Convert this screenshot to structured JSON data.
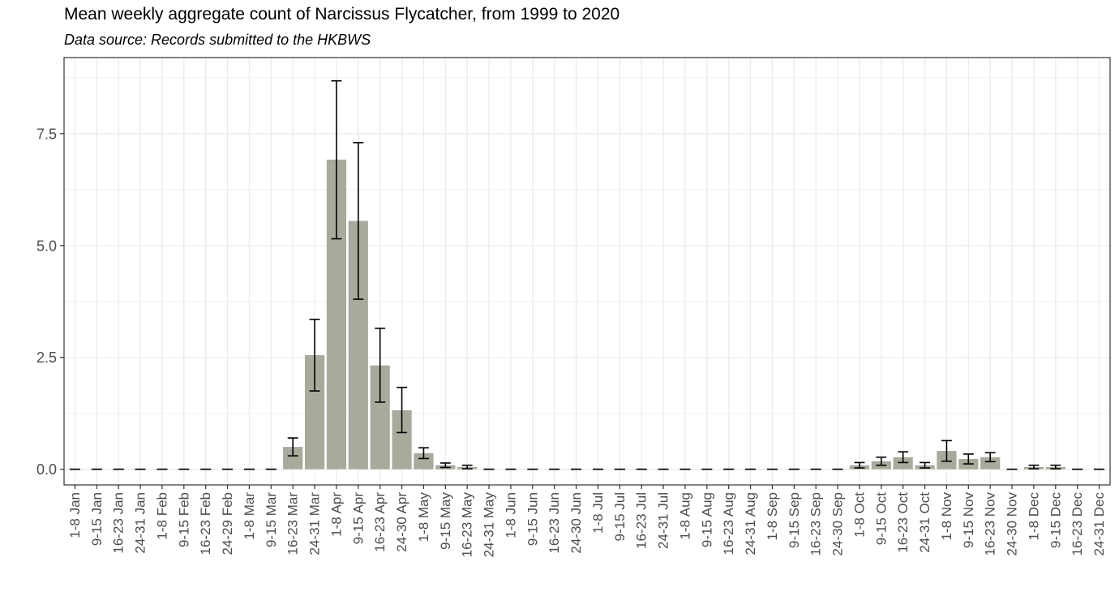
{
  "chart_data": {
    "type": "bar",
    "title": "Mean weekly aggregate count of Narcissus Flycatcher, from 1999 to 2020",
    "subtitle": "Data source: Records submitted to the HKBWS",
    "xlabel": "",
    "ylabel": "",
    "ylim": [
      -0.35,
      9.2
    ],
    "yticks": [
      0.0,
      2.5,
      5.0,
      7.5
    ],
    "ytick_labels": [
      "0.0",
      "2.5",
      "5.0",
      "7.5"
    ],
    "grid": true,
    "legend": "none",
    "bar_color": "#a8aa9b",
    "categories": [
      "1-8 Jan",
      "9-15 Jan",
      "16-23 Jan",
      "24-31 Jan",
      "1-8 Feb",
      "9-15 Feb",
      "16-23 Feb",
      "24-29 Feb",
      "1-8 Mar",
      "9-15 Mar",
      "16-23 Mar",
      "24-31 Mar",
      "1-8 Apr",
      "9-15 Apr",
      "16-23 Apr",
      "24-30 Apr",
      "1-8 May",
      "9-15 May",
      "16-23 May",
      "24-31 May",
      "1-8 Jun",
      "9-15 Jun",
      "16-23 Jun",
      "24-30 Jun",
      "1-8 Jul",
      "9-15 Jul",
      "16-23 Jul",
      "24-31 Jul",
      "1-8 Aug",
      "9-15 Aug",
      "16-23 Aug",
      "24-31 Aug",
      "1-8 Sep",
      "9-15 Sep",
      "16-23 Sep",
      "24-30 Sep",
      "1-8 Oct",
      "9-15 Oct",
      "16-23 Oct",
      "24-31 Oct",
      "1-8 Nov",
      "9-15 Nov",
      "16-23 Nov",
      "24-30 Nov",
      "1-8 Dec",
      "9-15 Dec",
      "16-23 Dec",
      "24-31 Dec"
    ],
    "values": [
      0,
      0,
      0,
      0,
      0,
      0,
      0,
      0,
      0,
      0,
      0.5,
      2.55,
      6.92,
      5.55,
      2.32,
      1.32,
      0.36,
      0.09,
      0.05,
      0,
      0,
      0,
      0,
      0,
      0,
      0,
      0,
      0,
      0,
      0,
      0,
      0,
      0,
      0,
      0,
      0,
      0.09,
      0.18,
      0.27,
      0.09,
      0.41,
      0.23,
      0.27,
      0,
      0.05,
      0.05,
      0,
      0
    ],
    "error_low": [
      0,
      0,
      0,
      0,
      0,
      0,
      0,
      0,
      0,
      0,
      0.3,
      1.75,
      5.15,
      3.8,
      1.5,
      0.82,
      0.24,
      0.04,
      0.01,
      0,
      0,
      0,
      0,
      0,
      0,
      0,
      0,
      0,
      0,
      0,
      0,
      0,
      0,
      0,
      0,
      0,
      0.03,
      0.09,
      0.15,
      0.03,
      0.18,
      0.12,
      0.17,
      0,
      0.01,
      0.01,
      0,
      0
    ],
    "error_high": [
      0,
      0,
      0,
      0,
      0,
      0,
      0,
      0,
      0,
      0,
      0.7,
      3.35,
      8.68,
      7.3,
      3.15,
      1.83,
      0.48,
      0.14,
      0.09,
      0,
      0,
      0,
      0,
      0,
      0,
      0,
      0,
      0,
      0,
      0,
      0,
      0,
      0,
      0,
      0,
      0,
      0.15,
      0.27,
      0.39,
      0.15,
      0.64,
      0.34,
      0.37,
      0,
      0.09,
      0.09,
      0,
      0
    ]
  }
}
